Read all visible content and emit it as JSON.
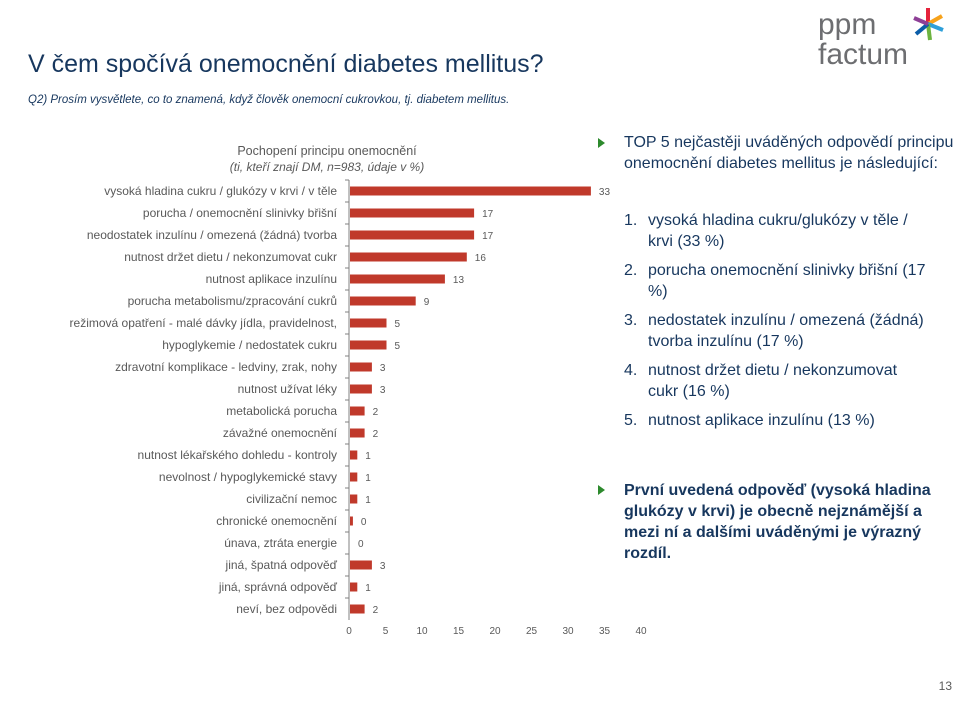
{
  "header": {
    "title": "V čem spočívá onemocnění diabetes mellitus?",
    "subtitle": "Q2) Prosím vysvětlete, co to znamená, když člověk onemocní cukrovkou, tj. diabetem mellitus."
  },
  "logo": {
    "line1": "ppm",
    "line2": "factum",
    "icon": "star-burst-icon"
  },
  "colors": {
    "bar": "#c0392b",
    "title": "#17375e",
    "bullet": "#2d8a2d",
    "axis": "#808080",
    "text": "#595959"
  },
  "chart_data": {
    "type": "bar",
    "orientation": "horizontal",
    "title": "Pochopení principu onemocnění",
    "subtitle": "(ti, kteří znají DM, n=983, údaje v %)",
    "categories": [
      "vysoká hladina cukru / glukózy v krvi / v těle",
      "porucha / onemocnění slinivky břišní",
      "neodostatek inzulínu / omezená (žádná) tvorba",
      "nutnost držet dietu / nekonzumovat cukr",
      "nutnost aplikace inzulínu",
      "porucha metabolismu/zpracování cukrů",
      "režimová opatření - malé dávky jídla, pravidelnost,",
      "hypoglykemie / nedostatek cukru",
      "zdravotní komplikace - ledviny, zrak, nohy",
      "nutnost užívat léky",
      "metabolická porucha",
      "závažné onemocnění",
      "nutnost lékařského dohledu - kontroly",
      "nevolnost / hypoglykemické stavy",
      "civilizační nemoc",
      "chronické onemocnění",
      "únava, ztráta energie",
      "jiná, špatná odpověď",
      "jiná, správná odpověď",
      "neví, bez odpovědi"
    ],
    "values": [
      33,
      17,
      17,
      16,
      13,
      9,
      5,
      5,
      3,
      3,
      2,
      2,
      1,
      1,
      1,
      0.4,
      0,
      3,
      1,
      2
    ],
    "value_labels": [
      "33",
      "17",
      "17",
      "16",
      "13",
      "9",
      "5",
      "5",
      "3",
      "3",
      "2",
      "2",
      "1",
      "1",
      "1",
      "0",
      "0",
      "3",
      "1",
      "2"
    ],
    "xlim": [
      0,
      40
    ],
    "xticks": [
      "0",
      "5",
      "10",
      "15",
      "20",
      "25",
      "30",
      "35",
      "40"
    ],
    "xlabel": "",
    "ylabel": "",
    "grid": false,
    "legend": "none"
  },
  "right_panel": {
    "block1_head": "TOP 5 nejčastěji uváděných odpovědí principu onemocnění diabetes mellitus je následující:",
    "items": [
      {
        "num": "1.",
        "text": "vysoká hladina cukru/glukózy v těle / krvi (33 %)"
      },
      {
        "num": "2.",
        "text": "porucha onemocnění slinivky břišní (17 %)"
      },
      {
        "num": "3.",
        "text": "nedostatek inzulínu / omezená (žádná) tvorba inzulínu (17 %)"
      },
      {
        "num": "4.",
        "text": "nutnost držet dietu / nekonzumovat cukr (16 %)"
      },
      {
        "num": "5.",
        "text": "nutnost aplikace inzulínu (13 %)"
      }
    ],
    "block2_text": "První uvedená odpověď (vysoká hladina glukózy v krvi) je obecně nejznámější a mezi ní a dalšími uváděnými je výrazný rozdíl."
  },
  "footer": {
    "page_number": "13"
  }
}
